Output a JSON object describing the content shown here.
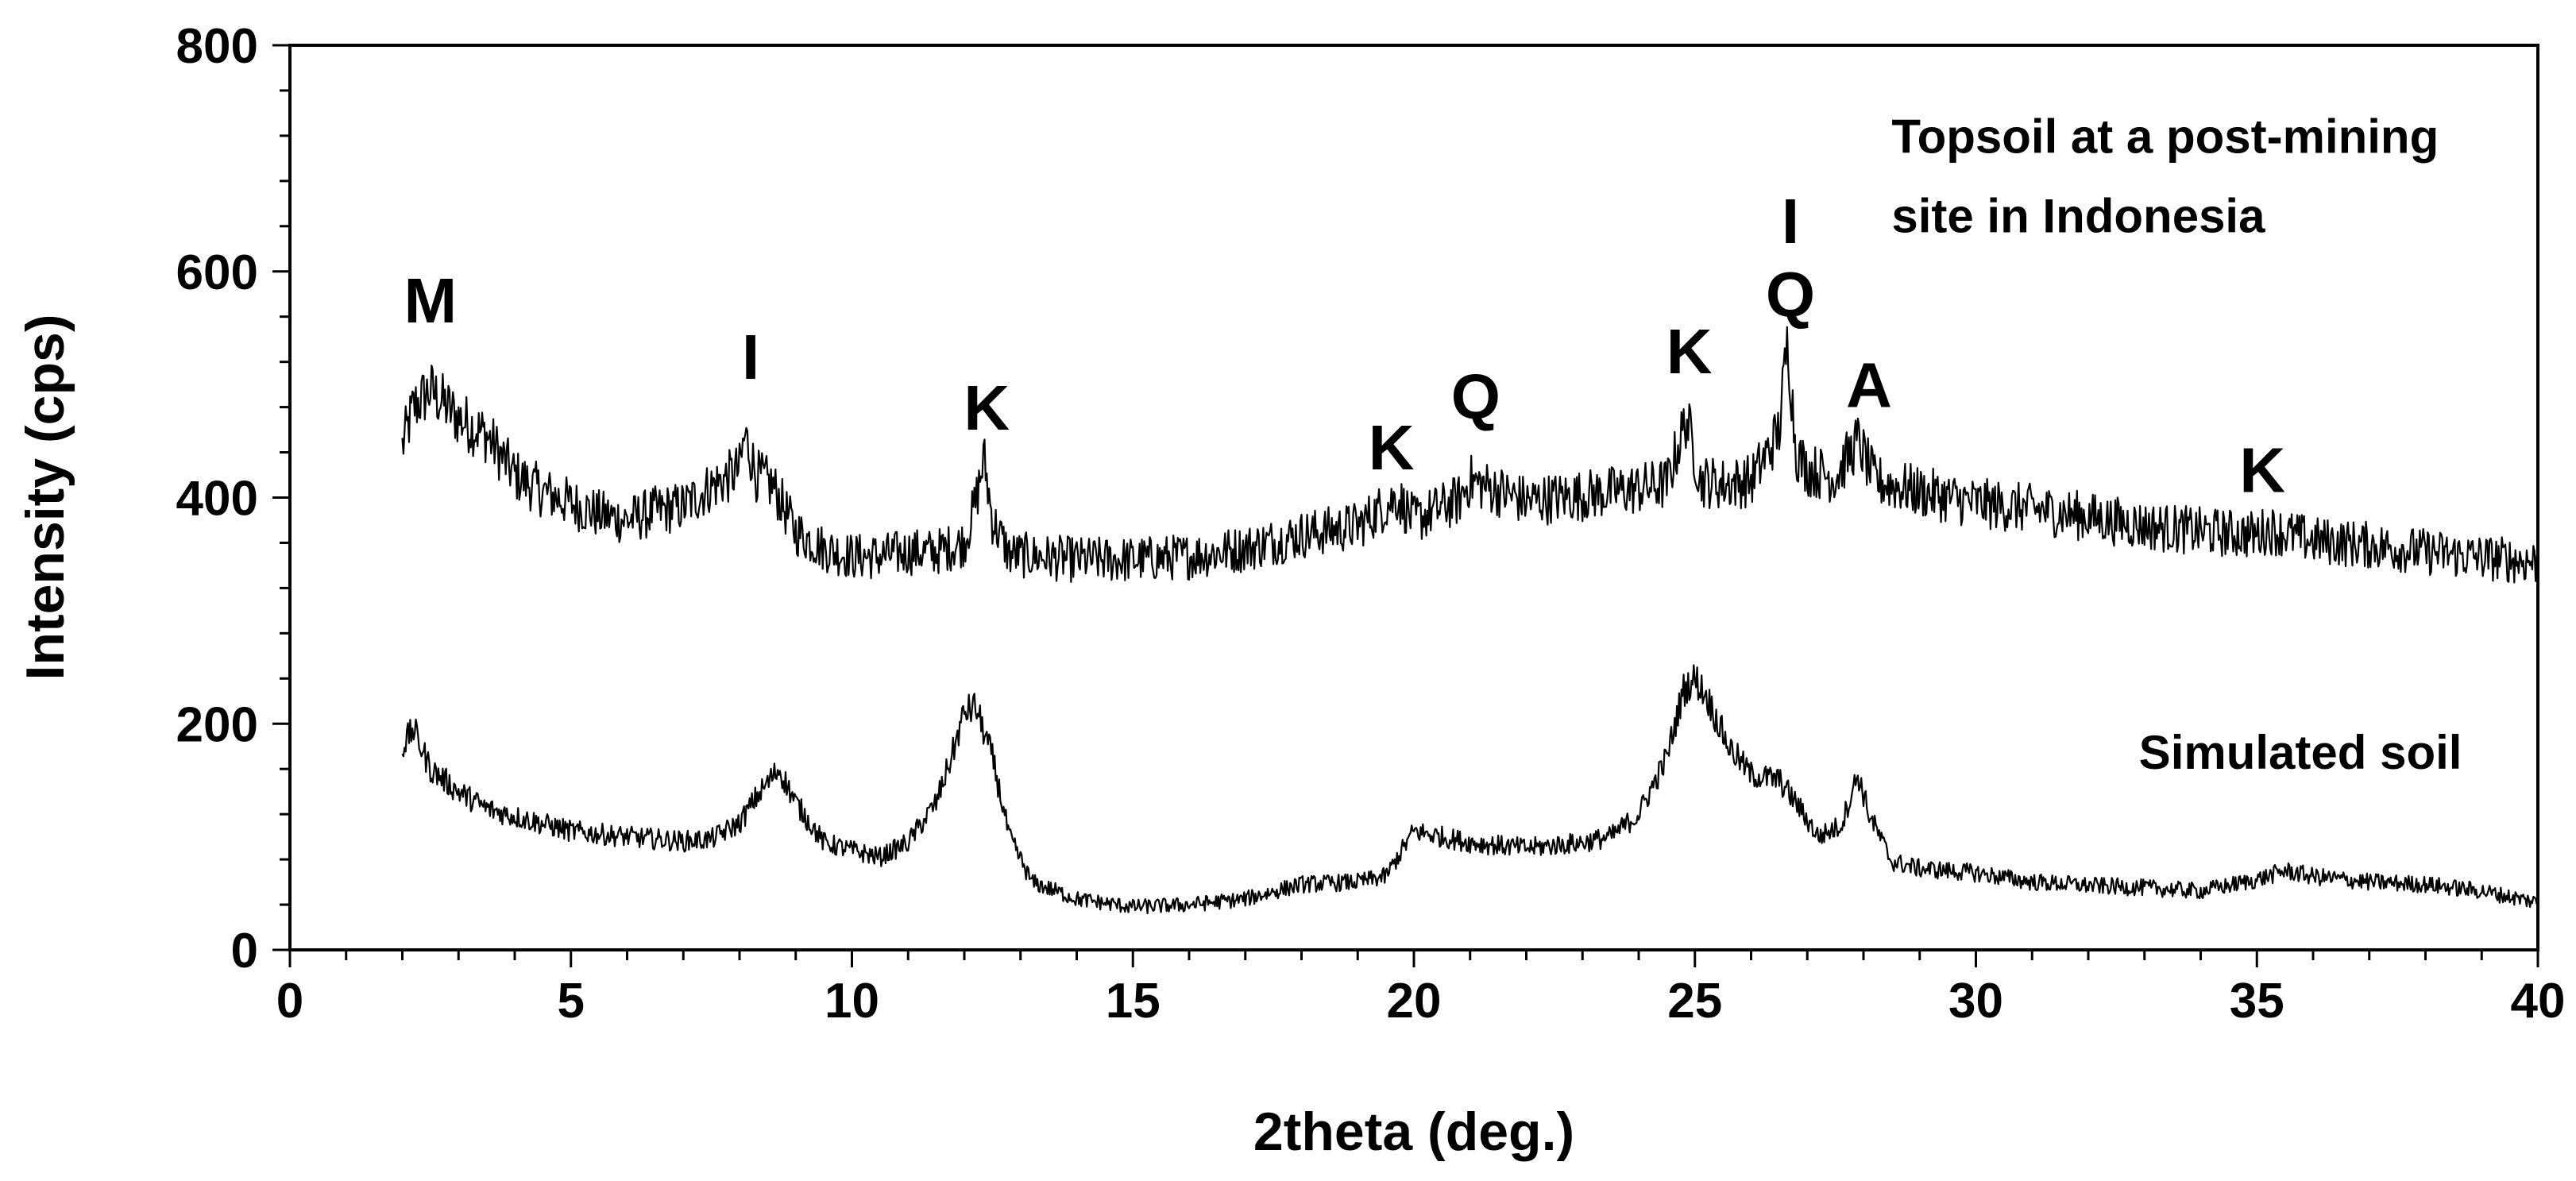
{
  "chart_data": {
    "type": "line",
    "title": "",
    "xlabel": "2theta (deg.)",
    "ylabel": "Intensity (cps)",
    "xlim": [
      0,
      40
    ],
    "ylim": [
      0,
      800
    ],
    "x_ticks": [
      0,
      5,
      10,
      15,
      20,
      25,
      30,
      35,
      40
    ],
    "y_ticks": [
      0,
      200,
      400,
      600,
      800
    ],
    "x_minor_step": 1,
    "y_minor_step": 40,
    "grid": false,
    "legend": "none",
    "series": [
      {
        "name": "Topsoil at a post-mining site in Indonesia",
        "label_lines": [
          "Topsoil at a post-mining",
          "site in Indonesia"
        ],
        "color": "#000000",
        "x": [
          2.0,
          2.2,
          2.5,
          3.0,
          3.5,
          4.0,
          4.5,
          5.0,
          5.5,
          6.0,
          6.5,
          7.0,
          7.5,
          7.8,
          8.0,
          8.1,
          8.3,
          8.6,
          9.0,
          9.5,
          10.0,
          10.5,
          11.0,
          11.5,
          12.0,
          12.2,
          12.35,
          12.5,
          12.8,
          13.5,
          14.0,
          15.0,
          16.0,
          17.0,
          18.0,
          19.0,
          19.7,
          20.0,
          20.8,
          21.0,
          22.0,
          23.0,
          24.0,
          24.5,
          24.85,
          25.1,
          25.5,
          26.0,
          26.3,
          26.5,
          26.65,
          26.8,
          27.0,
          27.5,
          27.9,
          28.2,
          29.0,
          30.0,
          31.0,
          32.0,
          33.0,
          34.0,
          35.0,
          35.2,
          36.0,
          37.0,
          38.0,
          39.0,
          40.0
        ],
        "y": [
          445,
          480,
          495,
          470,
          455,
          420,
          405,
          395,
          385,
          380,
          388,
          392,
          410,
          418,
          425,
          455,
          420,
          410,
          370,
          355,
          348,
          348,
          352,
          352,
          360,
          395,
          435,
          380,
          350,
          347,
          345,
          345,
          348,
          355,
          367,
          375,
          400,
          380,
          398,
          415,
          397,
          402,
          408,
          412,
          470,
          415,
          412,
          415,
          440,
          460,
          540,
          440,
          425,
          418,
          450,
          415,
          405,
          395,
          390,
          383,
          375,
          370,
          367,
          372,
          362,
          358,
          352,
          347,
          343
        ]
      },
      {
        "name": "Simulated soil",
        "label_lines": [
          "Simulated soil"
        ],
        "color": "#000000",
        "x": [
          2.0,
          2.2,
          2.5,
          3.0,
          3.5,
          4.0,
          5.0,
          6.0,
          7.0,
          7.5,
          8.0,
          8.3,
          8.7,
          9.0,
          9.5,
          10.0,
          10.5,
          11.0,
          11.5,
          11.8,
          12.0,
          12.2,
          12.5,
          12.8,
          13.2,
          14.0,
          15.0,
          16.0,
          17.0,
          18.0,
          19.0,
          19.5,
          20.0,
          20.5,
          21.0,
          22.0,
          23.0,
          23.5,
          24.0,
          24.5,
          24.8,
          25.0,
          25.2,
          25.6,
          26.0,
          26.5,
          26.8,
          27.2,
          27.6,
          27.9,
          28.1,
          28.5,
          29.0,
          30.0,
          31.0,
          32.0,
          33.0,
          34.0,
          35.0,
          35.5,
          36.0,
          37.0,
          38.0,
          39.0,
          40.0
        ],
        "y": [
          180,
          195,
          160,
          140,
          125,
          118,
          105,
          100,
          96,
          98,
          112,
          135,
          160,
          130,
          95,
          88,
          82,
          95,
          130,
          175,
          210,
          215,
          170,
          100,
          60,
          45,
          38,
          40,
          45,
          58,
          60,
          65,
          105,
          100,
          95,
          90,
          95,
          100,
          120,
          170,
          230,
          240,
          225,
          180,
          155,
          150,
          130,
          100,
          110,
          155,
          120,
          78,
          72,
          68,
          60,
          57,
          55,
          52,
          62,
          70,
          65,
          60,
          58,
          52,
          42
        ]
      }
    ],
    "annotations": [
      {
        "text": "M",
        "x": 2.5,
        "y": 555
      },
      {
        "text": "I",
        "x": 8.2,
        "y": 505
      },
      {
        "text": "K",
        "x": 12.4,
        "y": 460
      },
      {
        "text": "K",
        "x": 19.6,
        "y": 425
      },
      {
        "text": "Q",
        "x": 21.1,
        "y": 470
      },
      {
        "text": "K",
        "x": 24.9,
        "y": 510
      },
      {
        "text": "I",
        "x": 26.7,
        "y": 625
      },
      {
        "text": "Q",
        "x": 26.7,
        "y": 560
      },
      {
        "text": "A",
        "x": 28.1,
        "y": 480
      },
      {
        "text": "K",
        "x": 35.1,
        "y": 405
      }
    ],
    "series_label_positions": [
      {
        "series": 0,
        "x": 28.5,
        "y": 705,
        "anchor": "start"
      },
      {
        "series": 1,
        "x": 32.9,
        "y": 160,
        "anchor": "start"
      }
    ]
  }
}
